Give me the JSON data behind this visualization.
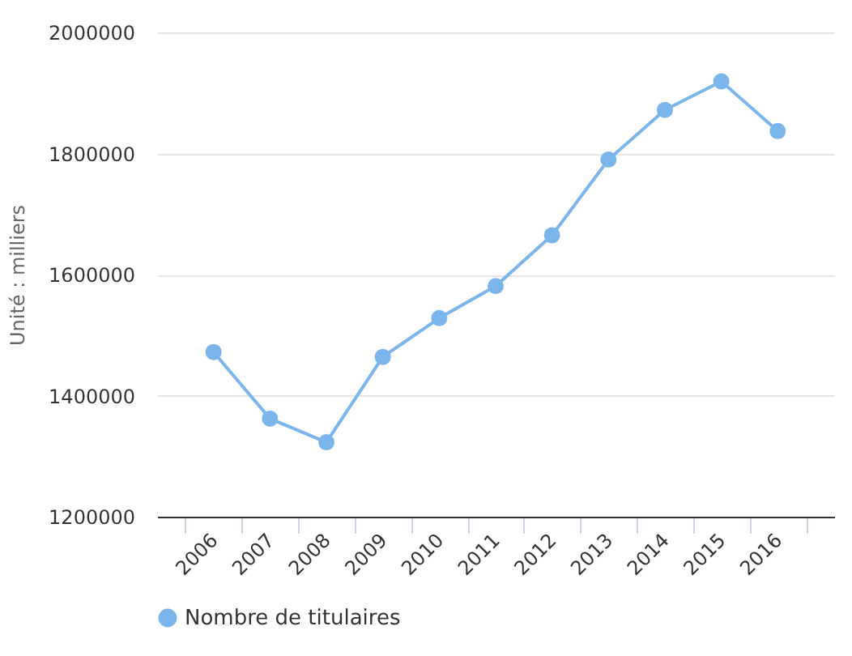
{
  "chart_data": {
    "type": "line",
    "ylabel": "Unité : milliers",
    "categories": [
      "2006",
      "2007",
      "2008",
      "2009",
      "2010",
      "2011",
      "2012",
      "2013",
      "2014",
      "2015",
      "2016"
    ],
    "series": [
      {
        "name": "Nombre de titulaires",
        "color": "#7cb5ec",
        "values": [
          1472000,
          1362000,
          1323000,
          1464000,
          1528000,
          1581000,
          1665000,
          1790000,
          1872000,
          1919000,
          1837000
        ]
      }
    ],
    "ylim": [
      1200000,
      2000000
    ],
    "yticks": [
      1200000,
      1400000,
      1600000,
      1800000,
      2000000
    ],
    "grid": "y",
    "legend": "bottom",
    "marker": "circle"
  }
}
